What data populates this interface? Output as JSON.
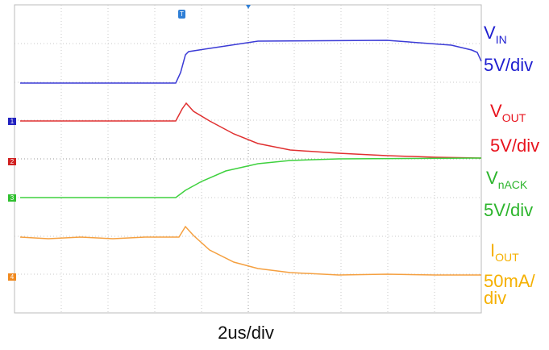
{
  "traces": [
    {
      "name": "V",
      "sub": "IN",
      "scale": [
        "5V/div"
      ],
      "channel": "1"
    },
    {
      "name": "V",
      "sub": "OUT",
      "scale": [
        "5V/div"
      ],
      "channel": "2"
    },
    {
      "name": "V",
      "sub": "nACK",
      "scale": [
        "5V/div"
      ],
      "channel": "3"
    },
    {
      "name": "I",
      "sub": "OUT",
      "scale": [
        "50mA/",
        "div"
      ],
      "channel": "4"
    }
  ],
  "trigger": "T",
  "timebase": "2us/div"
}
